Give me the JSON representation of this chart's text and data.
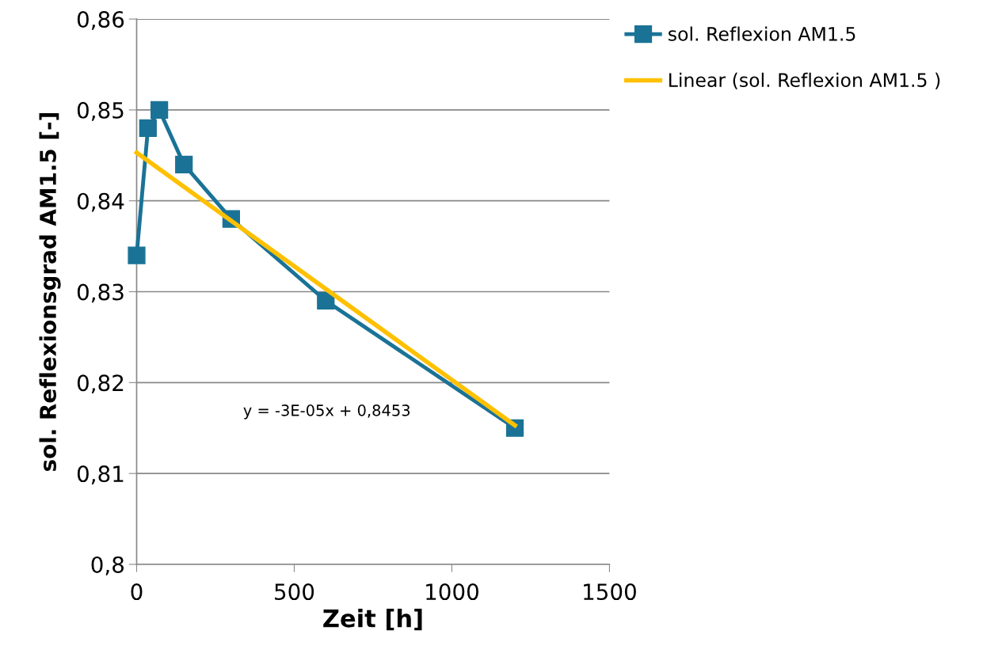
{
  "chart_data": {
    "type": "line",
    "xlabel": "Zeit [h]",
    "ylabel": "sol. Reflexionsgrad AM1.5 [-]",
    "series": [
      {
        "name": "sol. Reflexion AM1.5",
        "color": "#1a7396",
        "marker": "square",
        "x": [
          0,
          36,
          72,
          150,
          300,
          600,
          1200
        ],
        "values": [
          0.834,
          0.848,
          0.85,
          0.844,
          0.838,
          0.829,
          0.815
        ]
      },
      {
        "name": "Linear (sol. Reflexion AM1.5 )",
        "color": "#ffc000",
        "marker": "none",
        "x": [
          0,
          1200
        ],
        "values": [
          0.8453,
          0.8153
        ]
      }
    ],
    "xlim": [
      0,
      1500
    ],
    "xticks": [
      0,
      500,
      1000,
      1500
    ],
    "ylim": [
      0.8,
      0.86
    ],
    "yticks": [
      {
        "value": 0.8,
        "label": "0,8"
      },
      {
        "value": 0.81,
        "label": "0,81"
      },
      {
        "value": 0.82,
        "label": "0,82"
      },
      {
        "value": 0.83,
        "label": "0,83"
      },
      {
        "value": 0.84,
        "label": "0,84"
      },
      {
        "value": 0.85,
        "label": "0,85"
      },
      {
        "value": 0.86,
        "label": "0,86"
      }
    ],
    "grid": "y",
    "legend": "right",
    "annotations": [
      "y = -3E-05x + 0,8453"
    ]
  }
}
